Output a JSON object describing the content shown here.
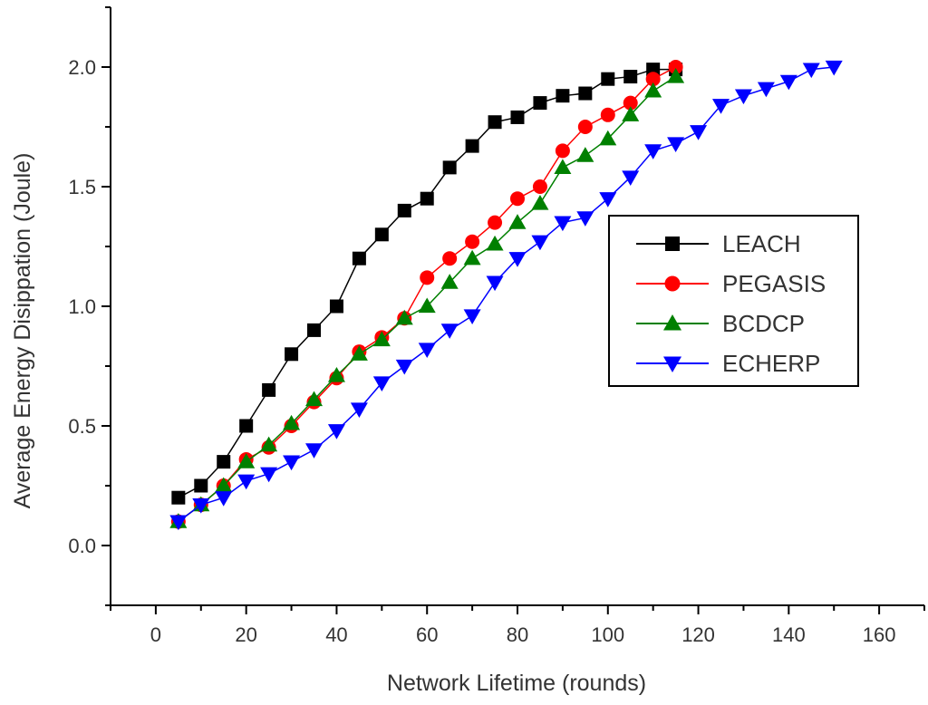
{
  "chart_data": {
    "type": "line",
    "xlabel": "Network Lifetime (rounds)",
    "ylabel": "Average Energy Disippation (Joule)",
    "xlim": [
      -10,
      170
    ],
    "ylim": [
      -0.25,
      2.25
    ],
    "x_ticks": [
      0,
      20,
      40,
      60,
      80,
      100,
      120,
      140,
      160
    ],
    "y_ticks": [
      0.0,
      0.5,
      1.0,
      1.5,
      2.0
    ],
    "x_tick_labels": [
      "0",
      "20",
      "40",
      "60",
      "80",
      "100",
      "120",
      "140",
      "160"
    ],
    "y_tick_labels": [
      "0.0",
      "0.5",
      "1.0",
      "1.5",
      "2.0"
    ],
    "grid": false,
    "legend_position": "right",
    "series": [
      {
        "name": "LEACH",
        "color": "#000000",
        "marker": "square",
        "x": [
          5,
          10,
          15,
          20,
          25,
          30,
          35,
          40,
          45,
          50,
          55,
          60,
          65,
          70,
          75,
          80,
          85,
          90,
          95,
          100,
          105,
          110,
          115
        ],
        "y": [
          0.2,
          0.25,
          0.35,
          0.5,
          0.65,
          0.8,
          0.9,
          1.0,
          1.2,
          1.3,
          1.4,
          1.45,
          1.58,
          1.67,
          1.77,
          1.79,
          1.85,
          1.88,
          1.89,
          1.95,
          1.96,
          1.99,
          1.99
        ]
      },
      {
        "name": "PEGASIS",
        "color": "#ff0000",
        "marker": "circle",
        "x": [
          5,
          10,
          15,
          20,
          25,
          30,
          35,
          40,
          45,
          50,
          55,
          60,
          65,
          70,
          75,
          80,
          85,
          90,
          95,
          100,
          105,
          110,
          115
        ],
        "y": [
          0.1,
          0.17,
          0.25,
          0.36,
          0.41,
          0.5,
          0.6,
          0.7,
          0.81,
          0.87,
          0.95,
          1.12,
          1.2,
          1.27,
          1.35,
          1.45,
          1.5,
          1.65,
          1.75,
          1.8,
          1.85,
          1.95,
          2.0
        ]
      },
      {
        "name": "BCDCP",
        "color": "#008000",
        "marker": "triangle-up",
        "x": [
          5,
          10,
          15,
          20,
          25,
          30,
          35,
          40,
          45,
          50,
          55,
          60,
          65,
          70,
          75,
          80,
          85,
          90,
          95,
          100,
          105,
          110,
          115
        ],
        "y": [
          0.1,
          0.17,
          0.25,
          0.35,
          0.42,
          0.51,
          0.61,
          0.71,
          0.8,
          0.86,
          0.95,
          1.0,
          1.1,
          1.2,
          1.26,
          1.35,
          1.43,
          1.58,
          1.63,
          1.7,
          1.8,
          1.9,
          1.96
        ]
      },
      {
        "name": "ECHERP",
        "color": "#0000ff",
        "marker": "triangle-down",
        "x": [
          5,
          10,
          15,
          20,
          25,
          30,
          35,
          40,
          45,
          50,
          55,
          60,
          65,
          70,
          75,
          80,
          85,
          90,
          95,
          100,
          105,
          110,
          115,
          120,
          125,
          130,
          135,
          140,
          145,
          150
        ],
        "y": [
          0.1,
          0.17,
          0.2,
          0.27,
          0.3,
          0.35,
          0.4,
          0.48,
          0.57,
          0.68,
          0.75,
          0.82,
          0.9,
          0.96,
          1.1,
          1.2,
          1.27,
          1.35,
          1.37,
          1.45,
          1.54,
          1.65,
          1.68,
          1.73,
          1.84,
          1.88,
          1.91,
          1.94,
          1.99,
          2.0
        ]
      }
    ]
  }
}
